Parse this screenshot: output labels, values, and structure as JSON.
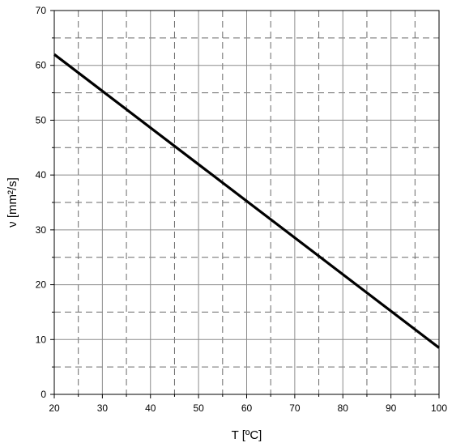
{
  "chart_data": {
    "type": "line",
    "title": "",
    "xlabel": "T [ºC]",
    "ylabel": "ν [mm²/s]",
    "xlim": [
      20,
      100
    ],
    "ylim": [
      0,
      70
    ],
    "x_major_ticks": [
      20,
      30,
      40,
      50,
      60,
      70,
      80,
      90,
      100
    ],
    "y_major_ticks": [
      0,
      10,
      20,
      30,
      40,
      50,
      60,
      70
    ],
    "x_minor_gridlines": [
      25,
      35,
      45,
      55,
      65,
      75,
      85,
      95
    ],
    "y_minor_gridlines": [
      5,
      15,
      25,
      35,
      45,
      55,
      65
    ],
    "grid": true,
    "series": [
      {
        "x": [
          20,
          100
        ],
        "y": [
          62,
          8.5
        ]
      }
    ]
  }
}
